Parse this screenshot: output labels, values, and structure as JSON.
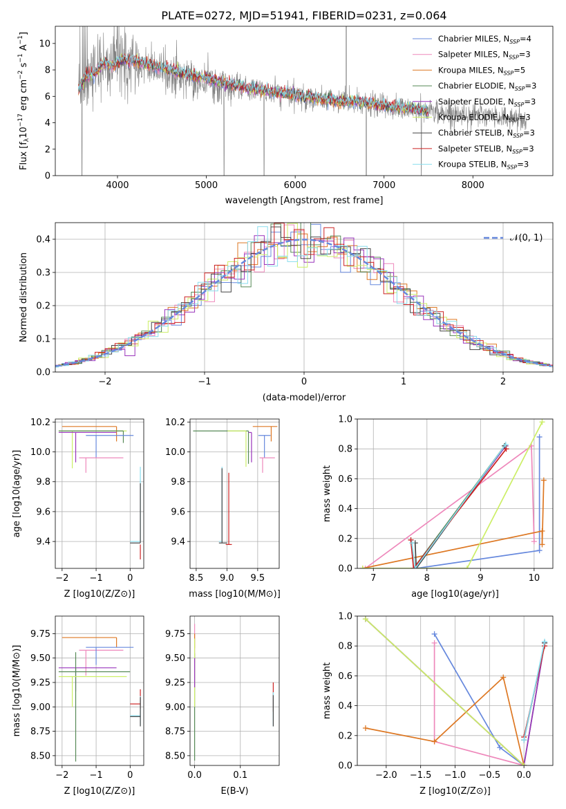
{
  "figure": {
    "title": "PLATE=0272, MJD=51941, FIBERID=0231, z=0.064"
  },
  "colors": {
    "cha_miles": "#6688dd",
    "sal_miles": "#ee88bb",
    "kro_miles": "#dd7722",
    "cha_elodie": "#558855",
    "sal_elodie": "#9933bb",
    "kro_elodie": "#ccee66",
    "cha_stelib": "#444444",
    "sal_stelib": "#cc2222",
    "kro_stelib": "#88ddee",
    "data": "#808080",
    "gauss": "#6688dd",
    "grid": "#b0b0b0"
  },
  "chart_data": [
    {
      "id": "spectrum",
      "type": "line",
      "xlabel": "wavelength [Angstrom, rest frame]",
      "ylabel": "Flux [f_λ10^-17 erg cm^-2 s^-1 A^-1]",
      "xlim": [
        3300,
        8900
      ],
      "ylim": [
        0,
        11.3
      ],
      "xticks": [
        "4000",
        "5000",
        "6000",
        "7000",
        "8000"
      ],
      "yticks": [
        "0",
        "2",
        "4",
        "6",
        "8",
        "10"
      ],
      "grid": false,
      "legend_position": "top-right",
      "legend": [
        {
          "key": "cha_miles",
          "label": "Chabrier MILES, N",
          "sub": "SSP",
          "suffix": "=4"
        },
        {
          "key": "sal_miles",
          "label": "Salpeter MILES, N",
          "sub": "SSP",
          "suffix": "=3"
        },
        {
          "key": "kro_miles",
          "label": "Kroupa MILES, N",
          "sub": "SSP",
          "suffix": "=5"
        },
        {
          "key": "cha_elodie",
          "label": "Chabrier ELODIE, N",
          "sub": "SSP",
          "suffix": "=3"
        },
        {
          "key": "sal_elodie",
          "label": "Salpeter ELODIE, N",
          "sub": "SSP",
          "suffix": "=3"
        },
        {
          "key": "kro_elodie",
          "label": "Kroupa ELODIE, N",
          "sub": "SSP",
          "suffix": "=3"
        },
        {
          "key": "cha_stelib",
          "label": "Chabrier STELIB, N",
          "sub": "SSP",
          "suffix": "=3"
        },
        {
          "key": "sal_stelib",
          "label": "Salpeter STELIB, N",
          "sub": "SSP",
          "suffix": "=3"
        },
        {
          "key": "kro_stelib",
          "label": "Kroupa STELIB, N",
          "sub": "SSP",
          "suffix": "=3"
        }
      ],
      "model_continuum": {
        "x": [
          3550,
          3650,
          3750,
          3850,
          3950,
          4050,
          4150,
          4300,
          4500,
          4700,
          4900,
          5100,
          5300,
          5500,
          5700,
          5900,
          6100,
          6300,
          6500,
          6700,
          6900,
          7100,
          7300,
          7500
        ],
        "y": [
          6.3,
          7.6,
          7.7,
          8.6,
          8.3,
          8.8,
          8.7,
          8.5,
          8.2,
          7.8,
          7.5,
          7.2,
          6.9,
          6.6,
          6.4,
          6.2,
          6.0,
          5.8,
          5.6,
          5.6,
          5.4,
          5.2,
          5.1,
          4.9
        ]
      },
      "data_continuum": {
        "x": [
          3550,
          3600,
          3700,
          3800,
          3900,
          4000,
          4100,
          4200,
          4400,
          4600,
          4800,
          5000,
          5200,
          5400,
          5600,
          5800,
          6000,
          6200,
          6400,
          6600,
          6800,
          7000,
          7200,
          7400,
          7600,
          7800,
          8000,
          8200,
          8400,
          8600
        ],
        "y": [
          6.5,
          7.0,
          7.8,
          8.5,
          8.2,
          8.8,
          8.6,
          8.4,
          8.1,
          7.7,
          7.4,
          7.1,
          6.8,
          6.6,
          6.4,
          6.2,
          6.0,
          5.8,
          5.7,
          5.6,
          5.4,
          5.2,
          5.1,
          5.0,
          4.8,
          4.7,
          4.6,
          4.5,
          4.4,
          4.3
        ]
      }
    },
    {
      "id": "residuals",
      "type": "step",
      "xlabel": "(data-model)/error",
      "ylabel": "Normed distribution",
      "xlim": [
        -2.5,
        2.5
      ],
      "ylim": [
        0,
        0.45
      ],
      "xticks": [
        "−2",
        "−1",
        "0",
        "1",
        "2"
      ],
      "yticks": [
        "0.0",
        "0.1",
        "0.2",
        "0.3",
        "0.4"
      ],
      "grid": true,
      "legend_position": "top-right",
      "gauss_label": "𝒩(0, 1)",
      "gauss": {
        "mu": 0,
        "sigma": 1
      }
    },
    {
      "id": "age_vs_Z",
      "type": "errorbar",
      "xlabel": "Z [log10(Z/Z⊙)]",
      "ylabel": "age  [log10(age/yr)]",
      "xlim": [
        -2.2,
        0.4
      ],
      "ylim": [
        9.22,
        10.22
      ],
      "xticks": [
        "−2",
        "−1",
        "0"
      ],
      "yticks": [
        "9.4",
        "9.6",
        "9.8",
        "10.0",
        "10.2"
      ],
      "grid": true,
      "points": [
        {
          "key": "kro_miles",
          "x": -0.4,
          "y": 10.17,
          "xerr": [
            1.6,
            0
          ],
          "yerr": [
            0.1,
            0
          ]
        },
        {
          "key": "kro_elodie",
          "x": -1.7,
          "y": 10.14,
          "xerr": [
            0.4,
            1.6
          ],
          "yerr": [
            0.25,
            0
          ]
        },
        {
          "key": "cha_elodie",
          "x": -0.2,
          "y": 10.14,
          "xerr": [
            1.9,
            0
          ],
          "yerr": [
            0.08,
            0
          ]
        },
        {
          "key": "sal_elodie",
          "x": -1.6,
          "y": 10.13,
          "xerr": [
            0.5,
            1.2
          ],
          "yerr": [
            0.2,
            0
          ]
        },
        {
          "key": "cha_miles",
          "x": -1.0,
          "y": 10.11,
          "xerr": [
            0.3,
            1.1
          ],
          "yerr": [
            0.15,
            0
          ]
        },
        {
          "key": "sal_miles",
          "x": -1.3,
          "y": 9.96,
          "xerr": [
            0.2,
            1.1
          ],
          "yerr": [
            0.1,
            0
          ]
        },
        {
          "key": "kro_stelib",
          "x": 0.3,
          "y": 9.4,
          "xerr": [
            0.3,
            0
          ],
          "yerr": [
            0,
            0.5
          ]
        },
        {
          "key": "cha_stelib",
          "x": 0.3,
          "y": 9.39,
          "xerr": [
            0.3,
            0
          ],
          "yerr": [
            0,
            0.4
          ]
        },
        {
          "key": "sal_stelib",
          "x": 0.3,
          "y": 9.38,
          "xerr": [
            0,
            0
          ],
          "yerr": [
            0.1,
            0
          ]
        }
      ]
    },
    {
      "id": "age_vs_mass",
      "type": "errorbar",
      "xlabel": "mass [log10(M/M⊙)]",
      "ylabel": "",
      "xlim": [
        8.4,
        9.85
      ],
      "ylim": [
        9.22,
        10.22
      ],
      "xticks": [
        "8.5",
        "9.0",
        "9.5"
      ],
      "yticks": [
        "9.4",
        "9.6",
        "9.8",
        "10.0",
        "10.2"
      ],
      "grid": true,
      "points": [
        {
          "key": "kro_miles",
          "x": 9.72,
          "y": 10.17,
          "xerr": [
            0.3,
            0.1
          ],
          "yerr": [
            0.1,
            0
          ]
        },
        {
          "key": "cha_elodie",
          "x": 9.35,
          "y": 10.14,
          "xerr": [
            0.9,
            0
          ],
          "yerr": [
            0.22,
            0
          ]
        },
        {
          "key": "kro_elodie",
          "x": 9.31,
          "y": 10.14,
          "xerr": [
            0.3,
            0
          ],
          "yerr": [
            0.24,
            0
          ]
        },
        {
          "key": "sal_elodie",
          "x": 9.4,
          "y": 10.13,
          "xerr": [
            0.05,
            0
          ],
          "yerr": [
            0.2,
            0
          ]
        },
        {
          "key": "cha_miles",
          "x": 9.61,
          "y": 10.11,
          "xerr": [
            0.1,
            0.1
          ],
          "yerr": [
            0.15,
            0
          ]
        },
        {
          "key": "sal_miles",
          "x": 9.58,
          "y": 9.96,
          "xerr": [
            0.05,
            0.2
          ],
          "yerr": [
            0.1,
            0
          ]
        },
        {
          "key": "kro_stelib",
          "x": 8.92,
          "y": 9.4,
          "xerr": [
            0.05,
            0
          ],
          "yerr": [
            0,
            0.5
          ]
        },
        {
          "key": "cha_stelib",
          "x": 8.92,
          "y": 9.39,
          "xerr": [
            0.05,
            0.08
          ],
          "yerr": [
            0,
            0.5
          ]
        },
        {
          "key": "sal_stelib",
          "x": 9.03,
          "y": 9.38,
          "xerr": [
            0.05,
            0.05
          ],
          "yerr": [
            0,
            0.48
          ]
        }
      ]
    },
    {
      "id": "weight_vs_age",
      "type": "line",
      "xlabel": "age  [log10(age/yr)]",
      "ylabel": "mass weight",
      "xlim": [
        6.7,
        10.35
      ],
      "ylim": [
        0,
        1
      ],
      "xticks": [
        "7",
        "8",
        "9",
        "10"
      ],
      "yticks": [
        "0.0",
        "0.2",
        "0.4",
        "0.6",
        "0.8",
        "1.0"
      ],
      "grid": true,
      "series": [
        {
          "key": "cha_miles",
          "x": [
            7.8,
            10.1,
            10.1
          ],
          "y": [
            0.0,
            0.12,
            0.88
          ]
        },
        {
          "key": "sal_miles",
          "x": [
            6.85,
            9.95,
            10.0
          ],
          "y": [
            0.0,
            0.82,
            0.18
          ]
        },
        {
          "key": "kro_miles",
          "x": [
            6.8,
            10.15,
            10.15,
            10.18
          ],
          "y": [
            0.0,
            0.25,
            0.16,
            0.59
          ]
        },
        {
          "key": "cha_elodie",
          "x": [
            7.75,
            9.45
          ],
          "y": [
            0.0,
            0.82
          ]
        },
        {
          "key": "sal_elodie",
          "x": [
            7.77,
            9.47
          ],
          "y": [
            0.0,
            0.82
          ]
        },
        {
          "key": "kro_elodie",
          "x": [
            6.8,
            8.75,
            10.15
          ],
          "y": [
            0.0,
            0.0,
            0.98
          ]
        },
        {
          "key": "cha_stelib",
          "x": [
            7.78,
            7.8,
            9.45
          ],
          "y": [
            0.17,
            0.0,
            0.82
          ]
        },
        {
          "key": "sal_stelib",
          "x": [
            7.7,
            7.75,
            9.48
          ],
          "y": [
            0.19,
            0.0,
            0.8
          ]
        },
        {
          "key": "kro_stelib",
          "x": [
            7.72,
            7.78,
            9.47
          ],
          "y": [
            0.17,
            0.0,
            0.83
          ]
        }
      ]
    },
    {
      "id": "mass_vs_Z",
      "type": "errorbar",
      "xlabel": "Z [log10(Z/Z⊙)]",
      "ylabel": "mass [log10(M/M⊙)]",
      "xlim": [
        -2.2,
        0.4
      ],
      "ylim": [
        8.4,
        9.93
      ],
      "xticks": [
        "−2",
        "−1",
        "0"
      ],
      "yticks": [
        "8.50",
        "8.75",
        "9.00",
        "9.25",
        "9.50",
        "9.75"
      ],
      "grid": true,
      "points": [
        {
          "key": "kro_miles",
          "x": -0.4,
          "y": 9.71,
          "xerr": [
            1.6,
            0
          ],
          "yerr": [
            0.1,
            0
          ]
        },
        {
          "key": "sal_miles",
          "x": -1.3,
          "y": 9.58,
          "xerr": [
            0.2,
            1.1
          ],
          "yerr": [
            0.26,
            0
          ]
        },
        {
          "key": "cha_miles",
          "x": -1.0,
          "y": 9.61,
          "xerr": [
            0.3,
            1.1
          ],
          "yerr": [
            0.18,
            0
          ]
        },
        {
          "key": "sal_elodie",
          "x": -1.6,
          "y": 9.4,
          "xerr": [
            0.5,
            1.2
          ],
          "yerr": [
            0.24,
            0
          ]
        },
        {
          "key": "cha_elodie",
          "x": -1.6,
          "y": 9.36,
          "xerr": [
            0.5,
            1.6
          ],
          "yerr": [
            0.92,
            0.2
          ]
        },
        {
          "key": "kro_elodie",
          "x": -1.7,
          "y": 9.31,
          "xerr": [
            0.4,
            1.6
          ],
          "yerr": [
            0.31,
            0
          ]
        },
        {
          "key": "sal_stelib",
          "x": 0.3,
          "y": 9.03,
          "xerr": [
            0.3,
            0
          ],
          "yerr": [
            0.05,
            0.15
          ]
        },
        {
          "key": "kro_stelib",
          "x": 0.3,
          "y": 8.91,
          "xerr": [
            0.3,
            0
          ],
          "yerr": [
            0.1,
            0.2
          ]
        },
        {
          "key": "cha_stelib",
          "x": 0.3,
          "y": 8.9,
          "xerr": [
            0.3,
            0
          ],
          "yerr": [
            0.1,
            0.2
          ]
        }
      ]
    },
    {
      "id": "mass_vs_ebv",
      "type": "errorbar",
      "xlabel": "E(B-V)",
      "ylabel": "",
      "xlim": [
        -0.01,
        0.185
      ],
      "ylim": [
        8.4,
        9.93
      ],
      "xticks": [
        "0.0",
        "0.1"
      ],
      "yticks": [
        "8.50",
        "8.75",
        "9.00",
        "9.25",
        "9.50",
        "9.75"
      ],
      "grid": true,
      "points": [
        {
          "key": "sal_miles",
          "x": 0.0,
          "y": 9.6,
          "xerr": [
            0,
            0
          ],
          "yerr": [
            0.15,
            0.25
          ]
        },
        {
          "key": "kro_miles",
          "x": 0.0,
          "y": 9.7,
          "xerr": [
            0,
            0
          ],
          "yerr": [
            0.1,
            0.05
          ]
        },
        {
          "key": "cha_elodie",
          "x": 0.0,
          "y": 9.35,
          "xerr": [
            0,
            0
          ],
          "yerr": [
            0.9,
            0.2
          ]
        },
        {
          "key": "kro_elodie",
          "x": 0.0,
          "y": 9.3,
          "xerr": [
            0,
            0
          ],
          "yerr": [
            0.3,
            0.4
          ]
        },
        {
          "key": "sal_elodie",
          "x": 0.0,
          "y": 9.4,
          "xerr": [
            0,
            0
          ],
          "yerr": [
            0.2,
            0.1
          ]
        },
        {
          "key": "sal_stelib",
          "x": 0.172,
          "y": 9.05,
          "xerr": [
            0,
            0
          ],
          "yerr": [
            0.1,
            0.2
          ]
        },
        {
          "key": "kro_stelib",
          "x": 0.172,
          "y": 8.95,
          "xerr": [
            0,
            0
          ],
          "yerr": [
            0.15,
            0.2
          ]
        },
        {
          "key": "cha_stelib",
          "x": 0.172,
          "y": 8.92,
          "xerr": [
            0,
            0
          ],
          "yerr": [
            0.12,
            0.2
          ]
        }
      ]
    },
    {
      "id": "weight_vs_Z",
      "type": "line",
      "xlabel": "Z [log10(Z/Z⊙)]",
      "ylabel": "mass weight",
      "xlim": [
        -2.42,
        0.42
      ],
      "ylim": [
        0,
        1
      ],
      "xticks": [
        "−2.0",
        "−1.5",
        "−1.0",
        "−0.5",
        "0.0"
      ],
      "yticks": [
        "0.0",
        "0.2",
        "0.4",
        "0.6",
        "0.8",
        "1.0"
      ],
      "grid": true,
      "series": [
        {
          "key": "cha_miles",
          "x": [
            -1.3,
            -0.35,
            0.0
          ],
          "y": [
            0.88,
            0.12,
            0.0
          ]
        },
        {
          "key": "sal_miles",
          "x": [
            -1.3,
            -1.3,
            0.0
          ],
          "y": [
            0.82,
            0.16,
            0.0
          ]
        },
        {
          "key": "kro_miles",
          "x": [
            -2.3,
            -1.3,
            -0.3,
            0.0
          ],
          "y": [
            0.25,
            0.16,
            0.59,
            0.0
          ]
        },
        {
          "key": "cha_elodie",
          "x": [
            -2.3,
            0.0,
            0.3
          ],
          "y": [
            0.98,
            0.0,
            0.82
          ]
        },
        {
          "key": "sal_elodie",
          "x": [
            -2.3,
            0.0,
            0.3
          ],
          "y": [
            0.98,
            0.0,
            0.82
          ]
        },
        {
          "key": "kro_elodie",
          "x": [
            -2.3,
            0.0
          ],
          "y": [
            0.98,
            0.0
          ]
        },
        {
          "key": "cha_stelib",
          "x": [
            0.0,
            0.3
          ],
          "y": [
            0.17,
            0.82
          ]
        },
        {
          "key": "sal_stelib",
          "x": [
            0.0,
            0.3
          ],
          "y": [
            0.19,
            0.8
          ]
        },
        {
          "key": "kro_stelib",
          "x": [
            0.0,
            0.3
          ],
          "y": [
            0.17,
            0.83
          ]
        }
      ]
    }
  ]
}
